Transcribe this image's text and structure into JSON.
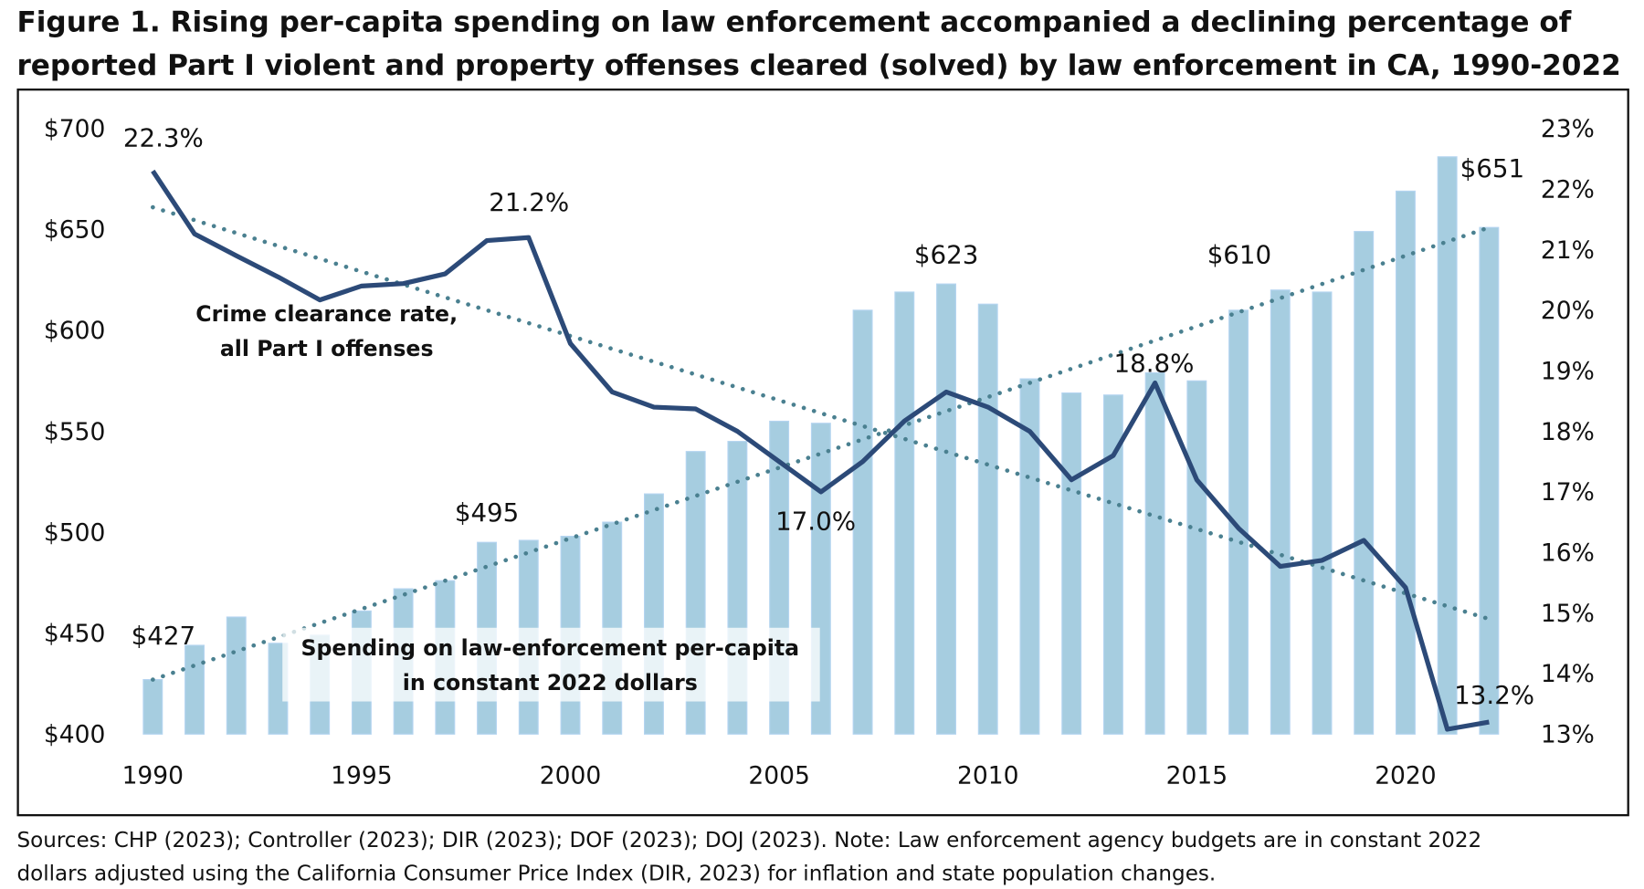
{
  "title_line1": "Figure 1. Rising per-capita spending on law enforcement accompanied a declining percentage of",
  "title_line2": "reported Part I violent and property offenses cleared (solved) by law enforcement in CA, 1990-2022",
  "source_line1": "Sources: CHP (2023); Controller (2023); DIR (2023); DOF (2023); DOJ (2023). Note: Law enforcement agency budgets are in constant 2022",
  "source_line2": "dollars adjusted using the California Consumer Price Index (DIR, 2023) for inflation and state population changes.",
  "colors": {
    "bars": "#a6cde0",
    "bar_outline": "#b4d4f0",
    "clearance_line": "#2c4a78",
    "trendlines": "#4a8090"
  },
  "chart_data": {
    "type": "bar+line",
    "x": [
      1990,
      1991,
      1992,
      1993,
      1994,
      1995,
      1996,
      1997,
      1998,
      1999,
      2000,
      2001,
      2002,
      2003,
      2004,
      2005,
      2006,
      2007,
      2008,
      2009,
      2010,
      2011,
      2012,
      2013,
      2014,
      2015,
      2016,
      2017,
      2018,
      2019,
      2020,
      2021,
      2022
    ],
    "x_ticks": [
      "1990",
      "1995",
      "2000",
      "2005",
      "2010",
      "2015",
      "2020"
    ],
    "y_left": {
      "ylim": [
        400,
        700
      ],
      "ticks": [
        "$400",
        "$450",
        "$500",
        "$550",
        "$600",
        "$650",
        "$700"
      ]
    },
    "y_right": {
      "ylim": [
        13,
        23
      ],
      "ticks": [
        "13%",
        "14%",
        "15%",
        "16%",
        "17%",
        "18%",
        "19%",
        "20%",
        "21%",
        "22%",
        "23%"
      ]
    },
    "series": [
      {
        "type": "bar",
        "axis": "left",
        "annotation": "Spending on law-enforcement per-capita|in constant 2022 dollars",
        "values": [
          427,
          444,
          458,
          445,
          449,
          461,
          472,
          476,
          495,
          496,
          498,
          505,
          519,
          540,
          545,
          555,
          554,
          610,
          619,
          623,
          613,
          576,
          569,
          568,
          579,
          575,
          610,
          620,
          619,
          649,
          669,
          686,
          651
        ]
      },
      {
        "type": "line",
        "axis": "right",
        "annotation": "Crime clearance rate,|all Part I offenses",
        "values": [
          22.3,
          21.26,
          20.9,
          20.55,
          20.17,
          20.4,
          20.44,
          20.6,
          21.15,
          21.2,
          19.45,
          18.65,
          18.4,
          18.37,
          18.0,
          17.5,
          17.0,
          17.5,
          18.17,
          18.65,
          18.4,
          18.0,
          17.2,
          17.6,
          18.8,
          17.2,
          16.4,
          15.77,
          15.87,
          16.2,
          15.42,
          13.08,
          13.2
        ]
      }
    ],
    "trendlines": [
      {
        "of": "bars",
        "style": "dotted",
        "from": 427,
        "to": 651
      },
      {
        "of": "line",
        "style": "dotted",
        "from": 21.7,
        "to": 14.9
      }
    ],
    "data_labels": [
      {
        "text": "$427",
        "x": 1990
      },
      {
        "text": "$495",
        "x": 1998
      },
      {
        "text": "$623",
        "x": 2009
      },
      {
        "text": "$610",
        "x": 2016
      },
      {
        "text": "$651",
        "x": 2022
      },
      {
        "text": "22.3%",
        "x": 1990
      },
      {
        "text": "21.2%",
        "x": 1999
      },
      {
        "text": "17.0%",
        "x": 2006
      },
      {
        "text": "18.8%",
        "x": 2014
      },
      {
        "text": "13.2%",
        "x": 2022
      }
    ],
    "grid": false,
    "legend": "none"
  }
}
